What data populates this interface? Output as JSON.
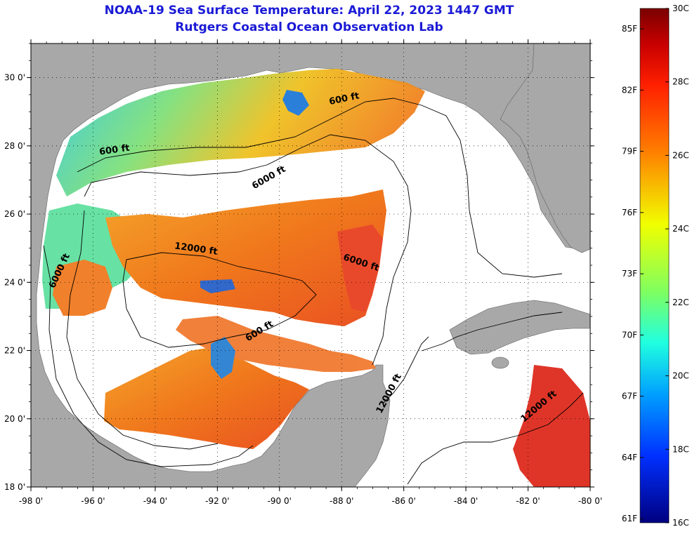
{
  "title": {
    "line1": "NOAA-19 Sea Surface Temperature:  April 22, 2023 1447 GMT",
    "line2": "Rutgers Coastal Ocean Observation Lab"
  },
  "map": {
    "lon_range": [
      -98,
      -80
    ],
    "lat_range": [
      18,
      31
    ],
    "lon_ticks": [
      "-98 0'",
      "-96 0'",
      "-94 0'",
      "-92 0'",
      "-90 0'",
      "-88 0'",
      "-86 0'",
      "-84 0'",
      "-82 0'",
      "-80 0'"
    ],
    "lat_ticks": [
      "18 0'",
      "20 0'",
      "22 0'",
      "24 0'",
      "26 0'",
      "28 0'",
      "30 0'"
    ],
    "contour_labels": [
      {
        "text": "600 ft",
        "lon": -95.3,
        "lat": 27.8,
        "rot": -8
      },
      {
        "text": "600 ft",
        "lon": -87.9,
        "lat": 29.3,
        "rot": -12
      },
      {
        "text": "6000 ft",
        "lon": -90.3,
        "lat": 27.0,
        "rot": -30
      },
      {
        "text": "12000 ft",
        "lon": -92.7,
        "lat": 24.9,
        "rot": 8
      },
      {
        "text": "6000 ft",
        "lon": -87.4,
        "lat": 24.5,
        "rot": 18
      },
      {
        "text": "6000 ft",
        "lon": -97.0,
        "lat": 24.3,
        "rot": -65
      },
      {
        "text": "600 ft",
        "lon": -90.6,
        "lat": 22.5,
        "rot": -32
      },
      {
        "text": "12000 ft",
        "lon": -86.4,
        "lat": 20.7,
        "rot": -62
      },
      {
        "text": "12000 ft",
        "lon": -81.6,
        "lat": 20.3,
        "rot": -40
      }
    ],
    "land_color": "#a8a8a8",
    "nodata_color": "#ffffff"
  },
  "colorbar": {
    "celsius_labels": [
      "30C",
      "28C",
      "26C",
      "24C",
      "22C",
      "20C",
      "18C",
      "16C"
    ],
    "fahrenheit_labels": [
      "85F",
      "82F",
      "79F",
      "76F",
      "73F",
      "70F",
      "67F",
      "64F",
      "61F"
    ],
    "range_c": [
      16,
      30
    ]
  }
}
